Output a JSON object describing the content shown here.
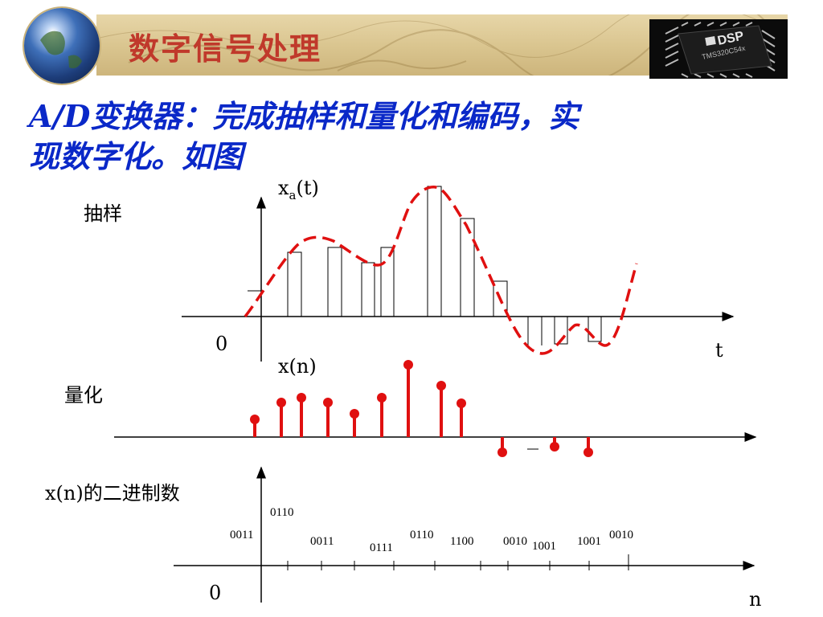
{
  "header": {
    "title": "数字信号处理",
    "chip_text": "DSP",
    "chip_subtext": "TMS320C54x"
  },
  "heading": {
    "line1": "A/D变换器：完成抽样和量化和编码，实",
    "line2": "现数字化。如图"
  },
  "labels": {
    "sampling": "抽样",
    "quantization": "量化",
    "binary": "x(n)的二进制数",
    "xa_main": "x",
    "xa_sub": "a",
    "xa_tail": "(t)",
    "xn": "x(n)",
    "zero_top": "0",
    "zero_bottom": "0",
    "t_axis": "t",
    "n_axis": "n"
  },
  "codes": [
    "0011",
    "0110",
    "0011",
    "0111",
    "0110",
    "1100",
    "0010",
    "1001",
    "1001",
    "0010"
  ],
  "colors": {
    "title": "#c0392b",
    "heading": "#0a28c8",
    "curve": "#e01010",
    "stem": "#e01010"
  }
}
